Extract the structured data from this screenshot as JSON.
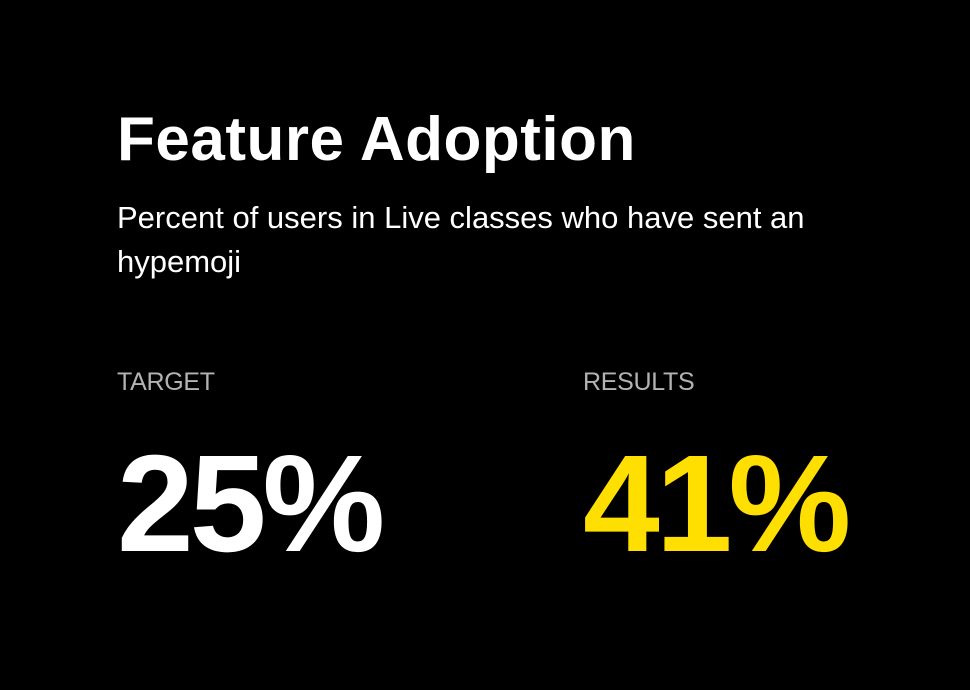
{
  "title": "Feature Adoption",
  "subtitle": "Percent of users in Live classes who have sent an hypemoji",
  "target": {
    "label": "TARGET",
    "value": "25%",
    "color": "#ffffff"
  },
  "results": {
    "label": "RESULTS",
    "value": "41%",
    "color": "#ffdf00"
  },
  "colors": {
    "background": "#000000",
    "label": "#b3b3b3",
    "accent": "#ffdf00"
  }
}
